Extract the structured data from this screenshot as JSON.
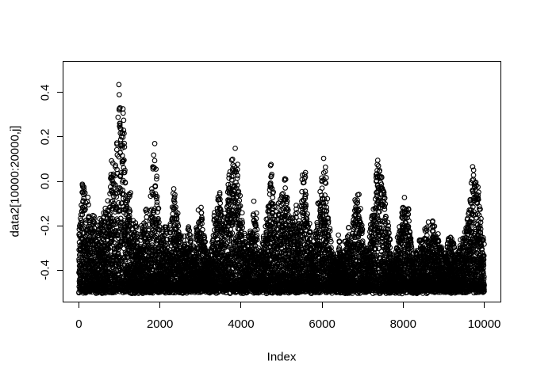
{
  "chart_data": {
    "type": "scatter",
    "title": "",
    "xlabel": "Index",
    "ylabel": "data2[10000:20000,j]",
    "xlim": [
      -400,
      10400
    ],
    "ylim": [
      -0.541,
      0.541
    ],
    "x_ticks": [
      0,
      2000,
      4000,
      6000,
      8000,
      10000
    ],
    "x_tick_labels": [
      "0",
      "2000",
      "4000",
      "6000",
      "8000",
      "10000"
    ],
    "y_ticks": [
      0.4,
      0.2,
      0.0,
      -0.2,
      -0.4
    ],
    "y_tick_labels": [
      "0.4",
      "0.2",
      "0.0",
      "-0.2",
      "-0.4"
    ],
    "grid": false,
    "legend": null,
    "n_points": 10001,
    "marker": {
      "shape": "open-circle",
      "radius_px": 2.8,
      "stroke_px": 1.1,
      "color": "#000000"
    },
    "background": "#ffffff",
    "observed_value_range": [
      -0.505,
      0.5
    ],
    "notable_peaks": [
      [
        90,
        -0.03
      ],
      [
        830,
        0.13
      ],
      [
        990,
        0.5
      ],
      [
        1860,
        0.19
      ],
      [
        2360,
        -0.02
      ],
      [
        3400,
        -0.06
      ],
      [
        3860,
        0.12
      ],
      [
        4720,
        0.07
      ],
      [
        5100,
        0.04
      ],
      [
        5550,
        0.04
      ],
      [
        6080,
        0.1
      ],
      [
        6870,
        -0.03
      ],
      [
        7420,
        0.09
      ],
      [
        8040,
        -0.11
      ],
      [
        8740,
        -0.14
      ],
      [
        9720,
        0.11
      ]
    ],
    "point_model": {
      "seed": 42,
      "block_size": 40,
      "block_jitter": 0.05,
      "point_env_jitter": 0.04,
      "density_exponent": 1.8,
      "bottom_base": -0.475,
      "bottom_spread": 0.03,
      "max_value": 0.51,
      "min_span": 0.02,
      "envelope": [
        [
          0,
          -0.25
        ],
        [
          40,
          -0.12
        ],
        [
          90,
          -0.03
        ],
        [
          150,
          -0.05
        ],
        [
          230,
          -0.08
        ],
        [
          300,
          -0.22
        ],
        [
          380,
          -0.15
        ],
        [
          450,
          -0.25
        ],
        [
          520,
          -0.18
        ],
        [
          600,
          -0.12
        ],
        [
          680,
          -0.15
        ],
        [
          760,
          -0.02
        ],
        [
          830,
          0.13
        ],
        [
          890,
          0.02
        ],
        [
          940,
          0.28
        ],
        [
          990,
          0.5
        ],
        [
          1040,
          0.36
        ],
        [
          1090,
          0.32
        ],
        [
          1140,
          0.12
        ],
        [
          1200,
          -0.02
        ],
        [
          1260,
          -0.05
        ],
        [
          1320,
          -0.22
        ],
        [
          1400,
          -0.15
        ],
        [
          1480,
          -0.28
        ],
        [
          1560,
          -0.2
        ],
        [
          1640,
          -0.12
        ],
        [
          1720,
          -0.18
        ],
        [
          1790,
          0.02
        ],
        [
          1860,
          0.19
        ],
        [
          1920,
          0.08
        ],
        [
          1990,
          -0.18
        ],
        [
          2060,
          -0.25
        ],
        [
          2140,
          -0.2
        ],
        [
          2220,
          -0.28
        ],
        [
          2300,
          -0.12
        ],
        [
          2360,
          -0.02
        ],
        [
          2440,
          -0.1
        ],
        [
          2520,
          -0.25
        ],
        [
          2600,
          -0.3
        ],
        [
          2680,
          -0.2
        ],
        [
          2760,
          -0.28
        ],
        [
          2840,
          -0.32
        ],
        [
          2920,
          -0.18
        ],
        [
          3000,
          -0.13
        ],
        [
          3080,
          -0.25
        ],
        [
          3160,
          -0.32
        ],
        [
          3240,
          -0.35
        ],
        [
          3320,
          -0.2
        ],
        [
          3400,
          -0.06
        ],
        [
          3470,
          -0.08
        ],
        [
          3550,
          -0.25
        ],
        [
          3630,
          -0.12
        ],
        [
          3700,
          0.05
        ],
        [
          3780,
          0.1
        ],
        [
          3860,
          0.12
        ],
        [
          3930,
          0.04
        ],
        [
          4000,
          -0.12
        ],
        [
          4080,
          -0.25
        ],
        [
          4160,
          -0.3
        ],
        [
          4240,
          -0.22
        ],
        [
          4320,
          -0.08
        ],
        [
          4400,
          -0.2
        ],
        [
          4480,
          -0.32
        ],
        [
          4560,
          -0.3
        ],
        [
          4640,
          -0.15
        ],
        [
          4720,
          0.07
        ],
        [
          4800,
          -0.05
        ],
        [
          4880,
          -0.18
        ],
        [
          4960,
          -0.12
        ],
        [
          5030,
          0.0
        ],
        [
          5100,
          0.04
        ],
        [
          5170,
          -0.1
        ],
        [
          5250,
          -0.2
        ],
        [
          5330,
          -0.06
        ],
        [
          5400,
          -0.12
        ],
        [
          5480,
          -0.02
        ],
        [
          5550,
          0.04
        ],
        [
          5620,
          -0.05
        ],
        [
          5700,
          -0.22
        ],
        [
          5780,
          -0.3
        ],
        [
          5860,
          -0.18
        ],
        [
          5940,
          -0.08
        ],
        [
          6010,
          0.08
        ],
        [
          6080,
          0.1
        ],
        [
          6150,
          -0.12
        ],
        [
          6230,
          -0.28
        ],
        [
          6310,
          -0.35
        ],
        [
          6400,
          -0.25
        ],
        [
          6480,
          -0.3
        ],
        [
          6560,
          -0.28
        ],
        [
          6640,
          -0.18
        ],
        [
          6720,
          -0.25
        ],
        [
          6800,
          -0.1
        ],
        [
          6870,
          -0.03
        ],
        [
          6950,
          -0.15
        ],
        [
          7030,
          -0.3
        ],
        [
          7110,
          -0.35
        ],
        [
          7190,
          -0.25
        ],
        [
          7270,
          -0.12
        ],
        [
          7340,
          0.05
        ],
        [
          7420,
          0.09
        ],
        [
          7490,
          0.0
        ],
        [
          7560,
          -0.1
        ],
        [
          7640,
          -0.25
        ],
        [
          7720,
          -0.35
        ],
        [
          7800,
          -0.3
        ],
        [
          7880,
          -0.25
        ],
        [
          7960,
          -0.18
        ],
        [
          8040,
          -0.11
        ],
        [
          8120,
          -0.13
        ],
        [
          8200,
          -0.28
        ],
        [
          8280,
          -0.35
        ],
        [
          8360,
          -0.32
        ],
        [
          8440,
          -0.3
        ],
        [
          8520,
          -0.25
        ],
        [
          8600,
          -0.15
        ],
        [
          8680,
          -0.25
        ],
        [
          8740,
          -0.14
        ],
        [
          8820,
          -0.3
        ],
        [
          8900,
          -0.28
        ],
        [
          8980,
          -0.32
        ],
        [
          9060,
          -0.25
        ],
        [
          9160,
          -0.2
        ],
        [
          9240,
          -0.3
        ],
        [
          9320,
          -0.35
        ],
        [
          9400,
          -0.28
        ],
        [
          9480,
          -0.25
        ],
        [
          9560,
          -0.18
        ],
        [
          9640,
          -0.06
        ],
        [
          9720,
          0.11
        ],
        [
          9790,
          0.02
        ],
        [
          9860,
          -0.05
        ],
        [
          9930,
          -0.2
        ],
        [
          10000,
          -0.28
        ]
      ]
    }
  }
}
